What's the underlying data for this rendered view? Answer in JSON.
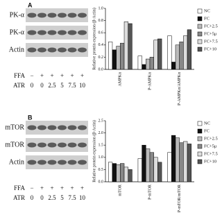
{
  "blots": [
    {
      "letter": "A",
      "rows": [
        "PK-α",
        "PK-α",
        "Actin"
      ],
      "ffa_label": "FFA",
      "atr_label": "ATR",
      "ffa": [
        "−",
        "+",
        "+",
        "+",
        "+",
        "+"
      ],
      "atr": [
        "0",
        "0",
        "2.5",
        "5",
        "7.5",
        "10"
      ]
    },
    {
      "letter": "B",
      "rows": [
        "mTOR",
        "mTOR",
        "Actin"
      ],
      "ffa_label": "FFA",
      "atr_label": "ATR",
      "ffa": [
        "−",
        "+",
        "+",
        "+",
        "+",
        "+"
      ],
      "atr": [
        "0",
        "0",
        "2.5",
        "5",
        "7.5",
        "10"
      ]
    }
  ],
  "chart_data": [
    {
      "type": "bar",
      "y_label": "Relative protein expression (β-Actin)",
      "categories": [
        "AMPKα",
        "P-AMPKα",
        "P-AMPKα/AMPKα"
      ],
      "ylim": [
        0,
        1
      ],
      "yticks": [
        {
          "value": 0,
          "label": "0.0"
        },
        {
          "value": 0.2,
          "label": "0.2"
        },
        {
          "value": 0.4,
          "label": "0.4"
        },
        {
          "value": 0.6,
          "label": "0.6"
        },
        {
          "value": 0.8,
          "label": "0.8"
        },
        {
          "value": 1,
          "label": "1.0"
        }
      ],
      "series": [
        {
          "name": "NC",
          "color": "#ffffff",
          "values": [
            0.45,
            0.22,
            0.55
          ]
        },
        {
          "name": "FC",
          "color": "#111111",
          "values": [
            0.32,
            0.08,
            0.12
          ]
        },
        {
          "name": "FC+2.5",
          "color": "#bbbbbb",
          "values": [
            0.38,
            0.17,
            0.4
          ]
        },
        {
          "name": "FC+5μ",
          "color": "#888888",
          "values": [
            0.43,
            0.2,
            0.45
          ]
        },
        {
          "name": "FC+7.5",
          "color": "#dddddd",
          "values": [
            0.78,
            0.48,
            0.55
          ]
        },
        {
          "name": "FC+10",
          "color": "#555555",
          "values": [
            0.75,
            0.5,
            0.65
          ]
        }
      ]
    },
    {
      "type": "bar",
      "y_label": "Relative protein expression (β-Actin)",
      "categories": [
        "mTOR",
        "P-mTOR",
        "P-mTOR/mTOR"
      ],
      "ylim": [
        0,
        2.5
      ],
      "yticks": [
        {
          "value": 0,
          "label": "0.0"
        },
        {
          "value": 0.5,
          "label": "0.5"
        },
        {
          "value": 1,
          "label": "1.0"
        },
        {
          "value": 1.5,
          "label": "1.5"
        },
        {
          "value": 2,
          "label": "2.0"
        },
        {
          "value": 2.5,
          "label": "2.5"
        }
      ],
      "series": [
        {
          "name": "NC",
          "color": "#ffffff",
          "values": [
            0.8,
            0.95,
            1.2
          ]
        },
        {
          "name": "FC",
          "color": "#111111",
          "values": [
            0.75,
            1.5,
            1.9
          ]
        },
        {
          "name": "FC+2.5",
          "color": "#bbbbbb",
          "values": [
            0.7,
            1.35,
            1.8
          ]
        },
        {
          "name": "FC+5μ",
          "color": "#888888",
          "values": [
            0.75,
            1.2,
            1.6
          ]
        },
        {
          "name": "FC+7.5",
          "color": "#dddddd",
          "values": [
            0.6,
            1.0,
            1.65
          ]
        },
        {
          "name": "FC+10",
          "color": "#555555",
          "values": [
            0.5,
            0.8,
            1.55
          ]
        }
      ]
    }
  ]
}
